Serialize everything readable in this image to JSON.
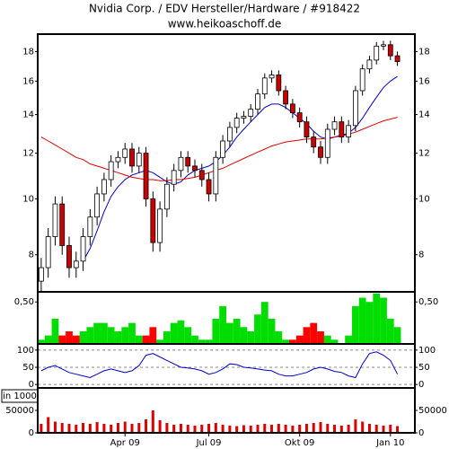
{
  "chart_data": [
    {
      "type": "candlestick",
      "title": "Nvidia Corp. / EDV Hersteller/Hardware / #918422",
      "subtitle": "www.heikoaschoff.de",
      "log_scale": true,
      "ylim": [
        6.9,
        19.3
      ],
      "yticks": [
        8,
        10,
        12,
        14,
        16,
        18
      ],
      "up_color": "#ffffff",
      "down_color": "#cc0000",
      "open": [
        7.2,
        7.6,
        8.6,
        9.8,
        8.3,
        7.6,
        7.8,
        8.6,
        9.3,
        10.2,
        10.8,
        11.6,
        11.8,
        12.2,
        11.4,
        12.0,
        10.0,
        8.4,
        9.6,
        10.6,
        11.2,
        11.8,
        11.4,
        11.2,
        10.8,
        10.2,
        11.8,
        12.6,
        13.3,
        13.8,
        13.9,
        14.3,
        15.2,
        16.2,
        16.4,
        15.4,
        14.6,
        14.1,
        13.6,
        12.8,
        12.3,
        11.8,
        13.2,
        13.6,
        12.8,
        13.4,
        15.4,
        16.8,
        17.4,
        18.4,
        18.5,
        17.7,
        null,
        null
      ],
      "high": [
        7.9,
        8.9,
        10.1,
        10.1,
        8.6,
        8.1,
        8.9,
        9.6,
        10.5,
        11.1,
        11.9,
        12.1,
        12.5,
        12.5,
        12.3,
        12.3,
        10.3,
        9.9,
        10.9,
        11.5,
        12.1,
        12.1,
        11.7,
        11.5,
        11.1,
        12.1,
        12.9,
        13.6,
        14.1,
        14.2,
        14.6,
        15.5,
        16.5,
        16.7,
        16.7,
        15.7,
        14.9,
        14.4,
        13.9,
        13.1,
        12.6,
        13.5,
        13.9,
        13.9,
        13.7,
        15.7,
        17.1,
        17.7,
        18.7,
        18.8,
        18.8,
        18.0,
        null,
        null
      ],
      "low": [
        6.9,
        7.3,
        8.3,
        8.0,
        7.3,
        7.3,
        7.5,
        8.3,
        9.0,
        9.9,
        10.5,
        11.3,
        11.5,
        11.1,
        11.1,
        9.7,
        8.1,
        8.1,
        9.3,
        10.3,
        10.9,
        11.1,
        10.9,
        10.5,
        9.9,
        9.9,
        11.5,
        12.3,
        13.0,
        13.5,
        13.6,
        14.0,
        14.9,
        15.9,
        15.1,
        14.3,
        13.8,
        13.3,
        12.5,
        12.0,
        11.5,
        11.5,
        12.9,
        12.5,
        12.5,
        13.1,
        15.1,
        16.5,
        17.1,
        18.1,
        17.4,
        17.0,
        null,
        null
      ],
      "close": [
        7.6,
        8.6,
        9.8,
        8.3,
        7.6,
        7.8,
        8.6,
        9.3,
        10.2,
        10.8,
        11.6,
        11.8,
        12.2,
        11.4,
        12.0,
        10.0,
        8.4,
        9.6,
        10.6,
        11.2,
        11.8,
        11.4,
        11.2,
        10.8,
        10.2,
        11.8,
        12.6,
        13.3,
        13.8,
        13.9,
        14.3,
        15.2,
        16.2,
        16.4,
        15.4,
        14.6,
        14.1,
        13.6,
        12.8,
        12.3,
        11.8,
        13.2,
        13.6,
        12.8,
        13.4,
        15.4,
        16.8,
        17.4,
        18.4,
        18.5,
        17.7,
        17.3,
        null,
        null
      ],
      "lines": [
        {
          "color": "#0000cc",
          "values": [
            null,
            null,
            null,
            null,
            null,
            null,
            7.8,
            8.2,
            8.8,
            9.5,
            10.1,
            10.5,
            10.8,
            11.0,
            11.1,
            11.2,
            11.1,
            10.9,
            10.7,
            10.6,
            10.7,
            11.0,
            11.2,
            11.3,
            11.4,
            11.6,
            11.9,
            12.3,
            12.8,
            13.2,
            13.6,
            14.0,
            14.4,
            14.6,
            14.6,
            14.4,
            14.1,
            13.8,
            13.5,
            13.1,
            12.8,
            12.7,
            12.8,
            12.9,
            13.0,
            13.3,
            13.8,
            14.4,
            15.0,
            15.6,
            16.0,
            16.3,
            null,
            null
          ]
        },
        {
          "color": "#dd0000",
          "values": [
            12.8,
            12.6,
            12.4,
            12.2,
            12.0,
            11.8,
            11.7,
            11.5,
            11.4,
            11.3,
            11.2,
            11.1,
            11.0,
            10.9,
            10.85,
            10.8,
            10.8,
            10.75,
            10.75,
            10.8,
            10.8,
            10.85,
            10.9,
            11.0,
            11.1,
            11.2,
            11.3,
            11.45,
            11.6,
            11.75,
            11.9,
            12.05,
            12.2,
            12.35,
            12.45,
            12.55,
            12.6,
            12.65,
            12.7,
            12.7,
            12.7,
            12.75,
            12.8,
            12.85,
            12.95,
            13.05,
            13.2,
            13.35,
            13.5,
            13.65,
            13.75,
            13.85,
            null,
            null
          ]
        }
      ]
    },
    {
      "type": "area",
      "ylim": [
        0,
        0.62
      ],
      "yticks": [
        {
          "value": 0.5,
          "label": "0,50"
        }
      ],
      "series": [
        {
          "color": "#00dd00",
          "values": [
            0.05,
            0.1,
            0.3,
            0.1,
            0,
            0.05,
            0.15,
            0.2,
            0.25,
            0.25,
            0.2,
            0.15,
            0.2,
            0.25,
            0.1,
            0,
            0,
            0.05,
            0.15,
            0.25,
            0.28,
            0.2,
            0.1,
            0.05,
            0.05,
            0.3,
            0.45,
            0.25,
            0.3,
            0.2,
            0.15,
            0.35,
            0.5,
            0.3,
            0.15,
            0.05,
            0,
            0,
            0,
            0,
            0,
            0.1,
            0.05,
            0,
            0.1,
            0.45,
            0.55,
            0.5,
            0.6,
            0.55,
            0.3,
            0.2,
            null,
            null
          ]
        },
        {
          "color": "#ff0000",
          "values": [
            0,
            0,
            0,
            0.1,
            0.15,
            0.1,
            0,
            0,
            0,
            0,
            0,
            0,
            0,
            0,
            0,
            0.1,
            0.2,
            0,
            0,
            0,
            0,
            0,
            0,
            0,
            0,
            0,
            0,
            0,
            0,
            0,
            0,
            0,
            0,
            0,
            0,
            0,
            0.05,
            0.1,
            0.2,
            0.25,
            0.15,
            0,
            0,
            0,
            0,
            0,
            0,
            0,
            0,
            0,
            0,
            0,
            null,
            null
          ]
        }
      ]
    },
    {
      "type": "line",
      "color": "#0000cc",
      "ylim": [
        -10,
        118
      ],
      "yticks": [
        0,
        50,
        100
      ],
      "grid": "dashed",
      "values": [
        40,
        50,
        55,
        45,
        35,
        30,
        25,
        20,
        30,
        40,
        45,
        40,
        35,
        40,
        55,
        85,
        90,
        80,
        70,
        60,
        50,
        48,
        45,
        40,
        30,
        35,
        45,
        60,
        58,
        50,
        48,
        45,
        42,
        40,
        30,
        25,
        25,
        30,
        35,
        45,
        50,
        45,
        38,
        35,
        25,
        20,
        60,
        90,
        95,
        85,
        70,
        30,
        null,
        null
      ]
    },
    {
      "type": "bar",
      "unit_label": "in 1000",
      "color": "#dd0000",
      "ylim": [
        0,
        100000
      ],
      "yticks": [
        0,
        50000
      ],
      "categories": [
        null,
        null,
        null,
        null,
        null,
        null,
        null,
        null,
        null,
        null,
        null,
        null,
        "Apr 09",
        null,
        null,
        null,
        null,
        null,
        null,
        null,
        null,
        null,
        null,
        null,
        "Jul 09",
        null,
        null,
        null,
        null,
        null,
        null,
        null,
        null,
        null,
        null,
        null,
        null,
        "Okt 09",
        null,
        null,
        null,
        null,
        null,
        null,
        null,
        null,
        null,
        null,
        null,
        null,
        "Jan 10",
        null,
        null,
        null
      ],
      "values": [
        20000,
        35000,
        25000,
        22000,
        20000,
        18000,
        22000,
        20000,
        24000,
        20000,
        18000,
        22000,
        25000,
        20000,
        22000,
        30000,
        50000,
        28000,
        22000,
        18000,
        20000,
        18000,
        16000,
        18000,
        20000,
        22000,
        18000,
        16000,
        15000,
        17000,
        16000,
        18000,
        20000,
        18000,
        20000,
        18000,
        16000,
        18000,
        20000,
        22000,
        24000,
        20000,
        18000,
        16000,
        18000,
        30000,
        25000,
        20000,
        18000,
        16000,
        18000,
        15000,
        null,
        null
      ]
    }
  ]
}
